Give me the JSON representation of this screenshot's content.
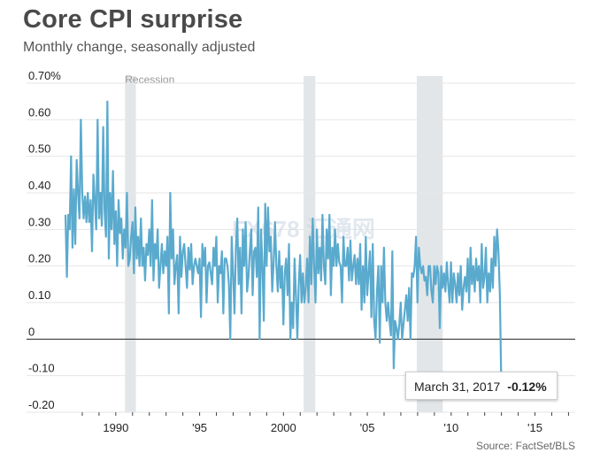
{
  "header": {
    "title": "Core CPI surprise",
    "subtitle": "Monthly change, seasonally adjusted"
  },
  "source": "Source: FactSet/BLS",
  "callout": {
    "date": "March 31, 2017",
    "value": "-0.12%"
  },
  "watermark": "FX678 汇通网",
  "colors": {
    "line": "#5aaace",
    "recession": "#e3e6e9",
    "grid": "#e6e6e6",
    "zero": "#222222"
  },
  "chart_data": {
    "type": "line",
    "title": "Core CPI surprise",
    "subtitle": "Monthly change, seasonally adjusted",
    "xlabel": "",
    "ylabel": "",
    "ylim": [
      -0.2,
      0.7
    ],
    "xlim": [
      1987.0,
      2017.4
    ],
    "y_ticks": [
      {
        "value": 0.7,
        "label": "0.70%"
      },
      {
        "value": 0.6,
        "label": "0.60"
      },
      {
        "value": 0.5,
        "label": "0.50"
      },
      {
        "value": 0.4,
        "label": "0.40"
      },
      {
        "value": 0.3,
        "label": "0.30"
      },
      {
        "value": 0.2,
        "label": "0.20"
      },
      {
        "value": 0.1,
        "label": "0.10"
      },
      {
        "value": 0.0,
        "label": "0"
      },
      {
        "value": -0.1,
        "label": "-0.10"
      },
      {
        "value": -0.2,
        "label": "-0.20"
      }
    ],
    "x_ticks": [
      {
        "value": 1990,
        "label": "1990"
      },
      {
        "value": 1995,
        "label": "'95"
      },
      {
        "value": 2000,
        "label": "2000"
      },
      {
        "value": 2005,
        "label": "'05"
      },
      {
        "value": 2010,
        "label": "'10"
      },
      {
        "value": 2015,
        "label": "'15"
      }
    ],
    "recessions": [
      {
        "start": 1990.55,
        "end": 1991.2,
        "label": "Recession"
      },
      {
        "start": 2001.2,
        "end": 2001.9,
        "label": ""
      },
      {
        "start": 2007.95,
        "end": 2009.5,
        "label": ""
      }
    ],
    "series": [
      {
        "name": "Core CPI monthly change (%)",
        "start": 1987.0,
        "step": 0.0833,
        "values": [
          0.34,
          0.17,
          0.34,
          0.3,
          0.5,
          0.25,
          0.41,
          0.26,
          0.49,
          0.4,
          0.33,
          0.6,
          0.4,
          0.33,
          0.39,
          0.32,
          0.4,
          0.32,
          0.38,
          0.24,
          0.45,
          0.38,
          0.3,
          0.6,
          0.33,
          0.4,
          0.31,
          0.58,
          0.35,
          0.28,
          0.65,
          0.22,
          0.4,
          0.3,
          0.46,
          0.26,
          0.35,
          0.2,
          0.38,
          0.29,
          0.33,
          0.22,
          0.3,
          0.25,
          0.4,
          0.2,
          0.22,
          0.28,
          0.32,
          0.18,
          0.36,
          0.22,
          0.28,
          0.2,
          0.33,
          0.2,
          0.25,
          0.16,
          0.26,
          0.23,
          0.3,
          0.2,
          0.38,
          0.16,
          0.26,
          0.22,
          0.3,
          0.14,
          0.2,
          0.26,
          0.18,
          0.24,
          0.2,
          0.28,
          0.07,
          0.4,
          0.22,
          0.3,
          0.15,
          0.2,
          0.23,
          0.07,
          0.28,
          0.17,
          0.24,
          0.26,
          0.2,
          0.14,
          0.25,
          0.19,
          0.26,
          0.15,
          0.2,
          0.22,
          0.2,
          0.18,
          0.22,
          0.06,
          0.26,
          0.2,
          0.25,
          0.1,
          0.2,
          0.21,
          0.18,
          0.15,
          0.25,
          0.2,
          0.28,
          0.1,
          0.2,
          0.18,
          0.24,
          0.07,
          0.22,
          0.22,
          0.2,
          0.15,
          0.0,
          0.28,
          0.18,
          0.07,
          0.25,
          0.33,
          0.15,
          0.25,
          0.07,
          0.3,
          0.2,
          0.32,
          0.13,
          0.17,
          0.24,
          0.3,
          0.12,
          0.24,
          0.25,
          0.17,
          0.36,
          0.0,
          0.3,
          0.2,
          0.05,
          0.37,
          0.2,
          0.36,
          0.24,
          0.28,
          0.13,
          0.21,
          0.32,
          0.2,
          0.13,
          0.24,
          0.14,
          0.2,
          0.04,
          0.18,
          0.22,
          0.12,
          0.26,
          0.0,
          0.1,
          0.03,
          0.22,
          0.12,
          0.0,
          0.15,
          0.23,
          0.1,
          0.18,
          0.1,
          0.14,
          0.22,
          0.1,
          0.28,
          0.15,
          0.33,
          0.2,
          0.1,
          0.3,
          0.18,
          0.25,
          0.16,
          0.34,
          0.2,
          0.15,
          0.3,
          0.22,
          0.34,
          0.12,
          0.25,
          0.2,
          0.3,
          0.2,
          0.26,
          0.21,
          0.2,
          0.1,
          0.28,
          0.2,
          0.2,
          0.25,
          0.16,
          0.27,
          0.16,
          0.2,
          0.23,
          0.15,
          0.22,
          0.15,
          0.26,
          0.08,
          0.2,
          0.1,
          0.28,
          0.12,
          0.18,
          0.24,
          0.06,
          0.26,
          0.05,
          0.0,
          0.13,
          0.2,
          -0.01,
          0.2,
          0.1,
          0.25,
          0.1,
          0.05,
          0.1,
          0.05,
          0.01,
          0.24,
          -0.08,
          0.05,
          0.03,
          0.0,
          0.04,
          0.1,
          0.0,
          0.04,
          0.08,
          0.12,
          0.05,
          0.14,
          0.0,
          0.18,
          0.17,
          0.2,
          0.28,
          0.1,
          0.25,
          0.2,
          0.18,
          0.2,
          0.16,
          0.17,
          0.12,
          0.2,
          0.2,
          0.13,
          0.1,
          0.2,
          0.15,
          0.2,
          0.18,
          0.03,
          0.2,
          0.14,
          0.18,
          0.13,
          0.21,
          0.15,
          0.1,
          0.21,
          0.1,
          0.18,
          0.15,
          0.1,
          0.18,
          0.12,
          0.2,
          0.08,
          0.14,
          0.17,
          0.13,
          0.22,
          0.1,
          0.25,
          0.15,
          0.2,
          0.13,
          0.22,
          0.16,
          0.2,
          0.1,
          0.26,
          0.14,
          0.17,
          0.25,
          0.1,
          0.18,
          0.13,
          0.22,
          0.14,
          0.28,
          0.2,
          0.3,
          0.24,
          0.12,
          -0.12
        ]
      }
    ],
    "annotation": {
      "x": "March 31, 2017",
      "value": -0.12,
      "label": "-0.12%"
    }
  }
}
